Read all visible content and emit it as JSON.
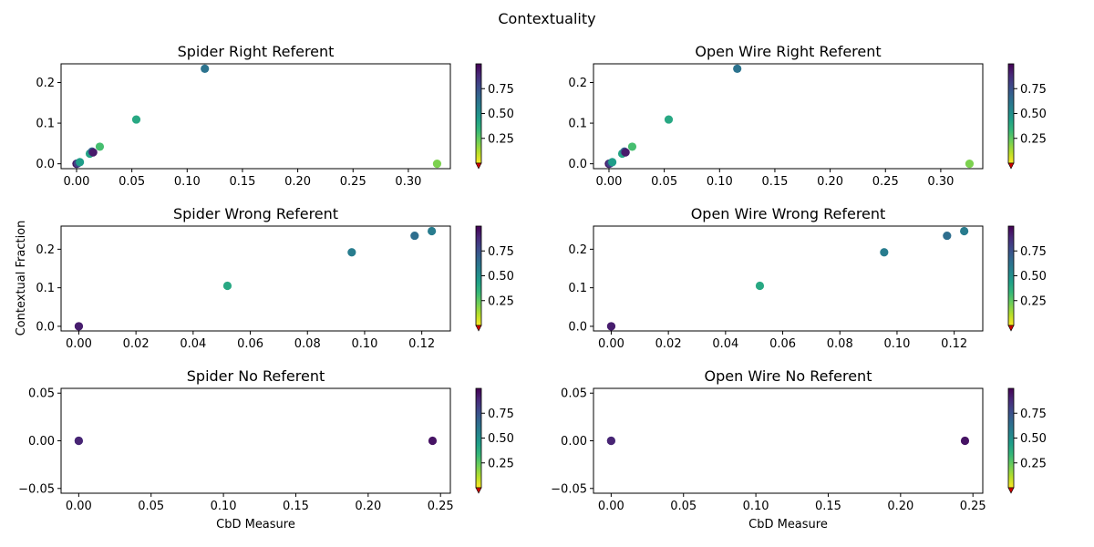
{
  "figure": {
    "suptitle": "Contextuality",
    "ylabel": "Contextual Fraction",
    "xlabel": "CbD Measure"
  },
  "colormap": {
    "name": "viridis_r",
    "under_color": "#cc0000",
    "stops": [
      "#fde725",
      "#b5de2b",
      "#6ece58",
      "#35b779",
      "#1f9e89",
      "#26828e",
      "#31688e",
      "#3e4989",
      "#482878",
      "#440154"
    ],
    "ticks": [
      0.25,
      0.5,
      0.75
    ],
    "tick_labels": [
      "0.25",
      "0.50",
      "0.75"
    ],
    "range": [
      0,
      1
    ]
  },
  "chart_data": [
    {
      "type": "scatter",
      "title": "Spider Right Referent",
      "xlim": [
        -0.014,
        0.338
      ],
      "ylim": [
        -0.012,
        0.246
      ],
      "xticks": [
        0.0,
        0.05,
        0.1,
        0.15,
        0.2,
        0.25,
        0.3
      ],
      "xtick_labels": [
        "0.00",
        "0.05",
        "0.10",
        "0.15",
        "0.20",
        "0.25",
        "0.30"
      ],
      "yticks": [
        0.0,
        0.1,
        0.2
      ],
      "ytick_labels": [
        "0.0",
        "0.1",
        "0.2"
      ],
      "points": [
        {
          "x": 0.0,
          "y": 0.0,
          "c": 0.62
        },
        {
          "x": 0.0,
          "y": 0.0,
          "c": 0.97
        },
        {
          "x": 0.001,
          "y": 0.001,
          "c": 0.8
        },
        {
          "x": 0.003,
          "y": 0.004,
          "c": 0.45
        },
        {
          "x": 0.012,
          "y": 0.025,
          "c": 0.42
        },
        {
          "x": 0.014,
          "y": 0.03,
          "c": 0.68
        },
        {
          "x": 0.015,
          "y": 0.028,
          "c": 0.93
        },
        {
          "x": 0.021,
          "y": 0.042,
          "c": 0.3
        },
        {
          "x": 0.054,
          "y": 0.109,
          "c": 0.4
        },
        {
          "x": 0.116,
          "y": 0.234,
          "c": 0.62
        },
        {
          "x": 0.326,
          "y": 0.0,
          "c": 0.2
        }
      ]
    },
    {
      "type": "scatter",
      "title": "Open Wire Right Referent",
      "xlim": [
        -0.014,
        0.338
      ],
      "ylim": [
        -0.012,
        0.246
      ],
      "xticks": [
        0.0,
        0.05,
        0.1,
        0.15,
        0.2,
        0.25,
        0.3
      ],
      "xtick_labels": [
        "0.00",
        "0.05",
        "0.10",
        "0.15",
        "0.20",
        "0.25",
        "0.30"
      ],
      "yticks": [
        0.0,
        0.1,
        0.2
      ],
      "ytick_labels": [
        "0.0",
        "0.1",
        "0.2"
      ],
      "points": [
        {
          "x": 0.0,
          "y": 0.0,
          "c": 0.62
        },
        {
          "x": 0.0,
          "y": 0.0,
          "c": 0.97
        },
        {
          "x": 0.001,
          "y": 0.001,
          "c": 0.8
        },
        {
          "x": 0.003,
          "y": 0.004,
          "c": 0.45
        },
        {
          "x": 0.012,
          "y": 0.025,
          "c": 0.42
        },
        {
          "x": 0.014,
          "y": 0.03,
          "c": 0.68
        },
        {
          "x": 0.015,
          "y": 0.028,
          "c": 0.93
        },
        {
          "x": 0.021,
          "y": 0.042,
          "c": 0.3
        },
        {
          "x": 0.054,
          "y": 0.109,
          "c": 0.4
        },
        {
          "x": 0.116,
          "y": 0.234,
          "c": 0.62
        },
        {
          "x": 0.326,
          "y": 0.0,
          "c": 0.2
        }
      ]
    },
    {
      "type": "scatter",
      "title": "Spider Wrong Referent",
      "xlim": [
        -0.0062,
        0.13
      ],
      "ylim": [
        -0.012,
        0.26
      ],
      "xticks": [
        0.0,
        0.02,
        0.04,
        0.06,
        0.08,
        0.1,
        0.12
      ],
      "xtick_labels": [
        "0.00",
        "0.02",
        "0.04",
        "0.06",
        "0.08",
        "0.10",
        "0.12"
      ],
      "yticks": [
        0.0,
        0.1,
        0.2
      ],
      "ytick_labels": [
        "0.0",
        "0.1",
        "0.2"
      ],
      "points": [
        {
          "x": 0.0,
          "y": 0.0,
          "c": 0.97
        },
        {
          "x": 0.0,
          "y": 0.0,
          "c": 0.92
        },
        {
          "x": 0.052,
          "y": 0.105,
          "c": 0.4
        },
        {
          "x": 0.0955,
          "y": 0.192,
          "c": 0.58
        },
        {
          "x": 0.1175,
          "y": 0.235,
          "c": 0.64
        },
        {
          "x": 0.1235,
          "y": 0.247,
          "c": 0.58
        }
      ]
    },
    {
      "type": "scatter",
      "title": "Open Wire Wrong Referent",
      "xlim": [
        -0.0062,
        0.13
      ],
      "ylim": [
        -0.012,
        0.26
      ],
      "xticks": [
        0.0,
        0.02,
        0.04,
        0.06,
        0.08,
        0.1,
        0.12
      ],
      "xtick_labels": [
        "0.00",
        "0.02",
        "0.04",
        "0.06",
        "0.08",
        "0.10",
        "0.12"
      ],
      "yticks": [
        0.0,
        0.1,
        0.2
      ],
      "ytick_labels": [
        "0.0",
        "0.1",
        "0.2"
      ],
      "points": [
        {
          "x": 0.0,
          "y": 0.0,
          "c": 0.97
        },
        {
          "x": 0.0,
          "y": 0.0,
          "c": 0.92
        },
        {
          "x": 0.052,
          "y": 0.105,
          "c": 0.4
        },
        {
          "x": 0.0955,
          "y": 0.192,
          "c": 0.58
        },
        {
          "x": 0.1175,
          "y": 0.235,
          "c": 0.64
        },
        {
          "x": 0.1235,
          "y": 0.247,
          "c": 0.58
        }
      ]
    },
    {
      "type": "scatter",
      "title": "Spider No Referent",
      "xlim": [
        -0.0122,
        0.2568
      ],
      "ylim": [
        -0.055,
        0.055
      ],
      "xticks": [
        0.0,
        0.05,
        0.1,
        0.15,
        0.2,
        0.25
      ],
      "xtick_labels": [
        "0.00",
        "0.05",
        "0.10",
        "0.15",
        "0.20",
        "0.25"
      ],
      "yticks": [
        -0.05,
        0.0,
        0.05
      ],
      "ytick_labels": [
        "−0.05",
        "0.00",
        "0.05"
      ],
      "xlabel": "CbD Measure",
      "points": [
        {
          "x": 0.0,
          "y": 0.0,
          "c": 0.72
        },
        {
          "x": 0.0,
          "y": 0.0,
          "c": 0.9
        },
        {
          "x": 0.2445,
          "y": 0.0,
          "c": 0.95
        }
      ]
    },
    {
      "type": "scatter",
      "title": "Open Wire No Referent",
      "xlim": [
        -0.0122,
        0.2568
      ],
      "ylim": [
        -0.055,
        0.055
      ],
      "xticks": [
        0.0,
        0.05,
        0.1,
        0.15,
        0.2,
        0.25
      ],
      "xtick_labels": [
        "0.00",
        "0.05",
        "0.10",
        "0.15",
        "0.20",
        "0.25"
      ],
      "yticks": [
        -0.05,
        0.0,
        0.05
      ],
      "ytick_labels": [
        "−0.05",
        "0.00",
        "0.05"
      ],
      "xlabel": "CbD Measure",
      "points": [
        {
          "x": 0.0,
          "y": 0.0,
          "c": 0.72
        },
        {
          "x": 0.0,
          "y": 0.0,
          "c": 0.9
        },
        {
          "x": 0.2445,
          "y": 0.0,
          "c": 0.95
        }
      ]
    }
  ]
}
